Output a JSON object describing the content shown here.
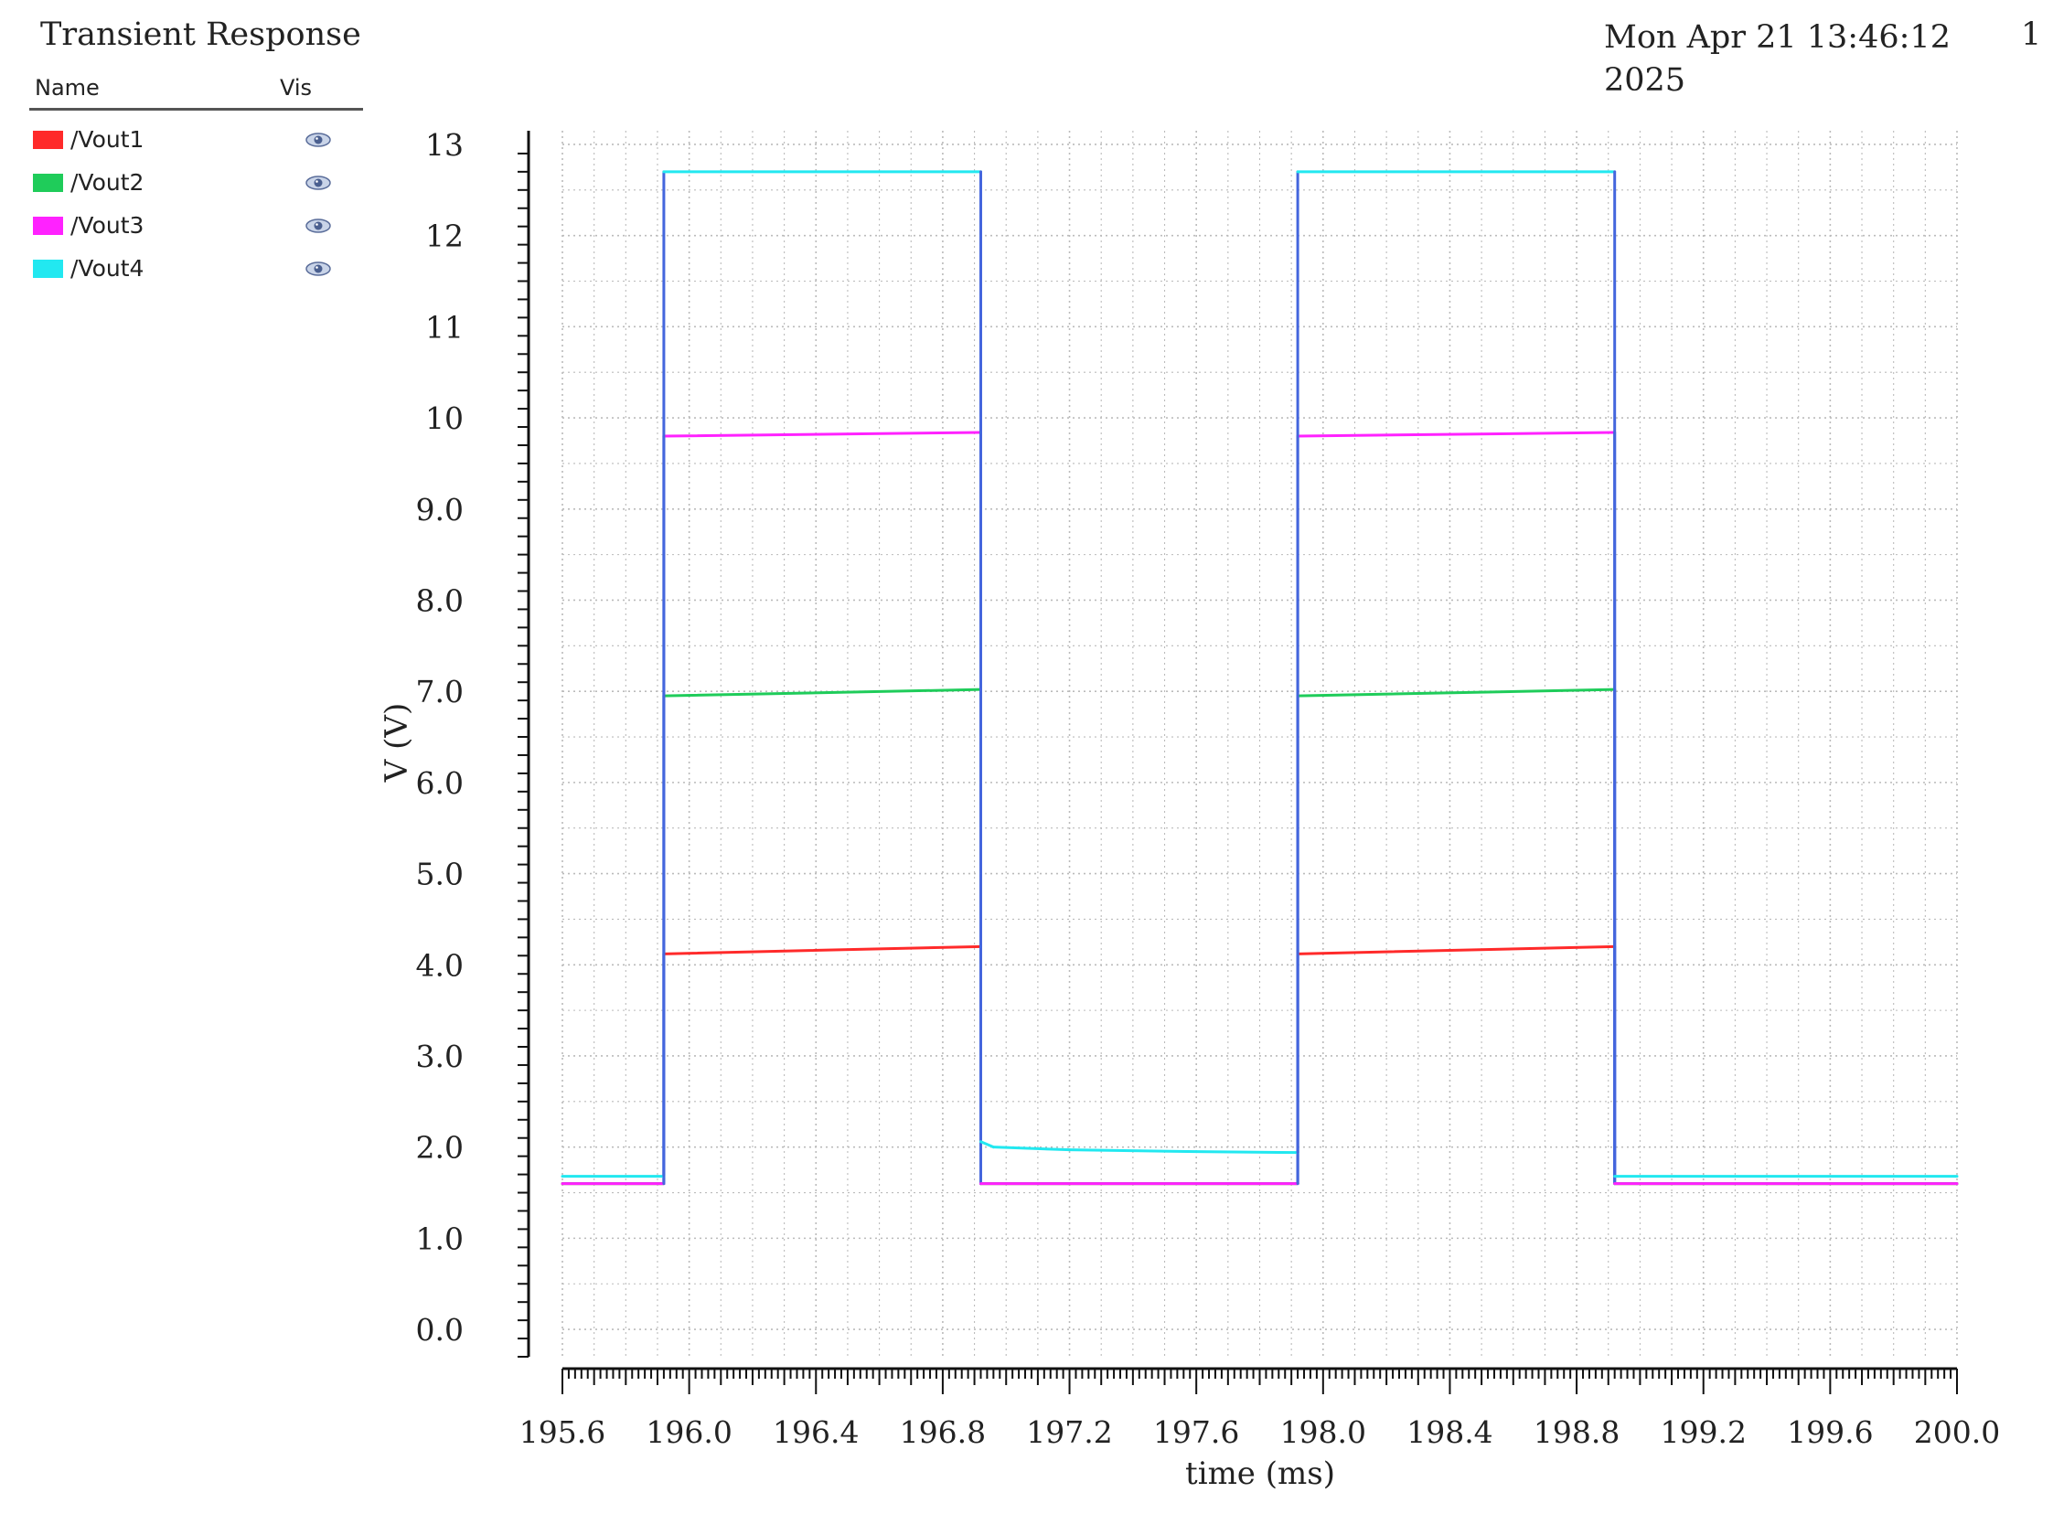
{
  "window": {
    "title": "Transient Response",
    "timestamp_line1": "Mon Apr 21 13:46:12",
    "timestamp_line2": "2025",
    "page_number": "1"
  },
  "legend": {
    "name_header": "Name",
    "vis_header": "Vis",
    "visibility_icon": "eye-icon"
  },
  "colors": {
    "Vout1": "#ff2a2a",
    "Vout2": "#1fcc5a",
    "Vout3": "#ff22ff",
    "Vout4": "#22e8f0",
    "edge": "#4466dd",
    "grid": "#bbbbbb"
  },
  "chart_data": {
    "type": "line",
    "xlabel": "time (ms)",
    "ylabel": "V (V)",
    "xlim": [
      195.6,
      200.0
    ],
    "ylim": [
      -0.3,
      13.15
    ],
    "grid": true,
    "legend_position": "top-left",
    "x_ticks": [
      "195.6",
      "196.0",
      "196.4",
      "196.8",
      "197.2",
      "197.6",
      "198.0",
      "198.4",
      "198.8",
      "199.2",
      "199.6",
      "200.0"
    ],
    "y_ticks": [
      "0.0",
      "1.0",
      "2.0",
      "3.0",
      "4.0",
      "5.0",
      "6.0",
      "7.0",
      "8.0",
      "9.0",
      "10",
      "11",
      "12",
      "13"
    ],
    "series": [
      {
        "name": "/Vout1",
        "x": [
          195.6,
          195.92,
          195.92,
          196.92,
          196.92,
          197.92,
          197.92,
          198.92,
          198.92,
          200.0
        ],
        "y": [
          1.6,
          1.6,
          4.12,
          4.2,
          1.6,
          1.6,
          4.12,
          4.2,
          1.6,
          1.6
        ]
      },
      {
        "name": "/Vout2",
        "x": [
          195.6,
          195.92,
          195.92,
          196.92,
          196.92,
          197.92,
          197.92,
          198.92,
          198.92,
          200.0
        ],
        "y": [
          1.6,
          1.6,
          6.95,
          7.02,
          1.6,
          1.6,
          6.95,
          7.02,
          1.6,
          1.6
        ]
      },
      {
        "name": "/Vout3",
        "x": [
          195.6,
          195.92,
          195.92,
          196.92,
          196.92,
          197.92,
          197.92,
          198.92,
          198.92,
          200.0
        ],
        "y": [
          1.6,
          1.6,
          9.8,
          9.84,
          1.6,
          1.6,
          9.8,
          9.84,
          1.6,
          1.6
        ]
      },
      {
        "name": "/Vout4",
        "x": [
          195.6,
          195.92,
          195.92,
          196.92,
          196.92,
          196.96,
          197.2,
          197.6,
          197.92,
          197.92,
          198.92,
          198.92,
          200.0
        ],
        "y": [
          1.68,
          1.68,
          12.7,
          12.7,
          2.06,
          2.0,
          1.97,
          1.95,
          1.94,
          12.7,
          12.7,
          1.68,
          1.68
        ]
      }
    ]
  }
}
